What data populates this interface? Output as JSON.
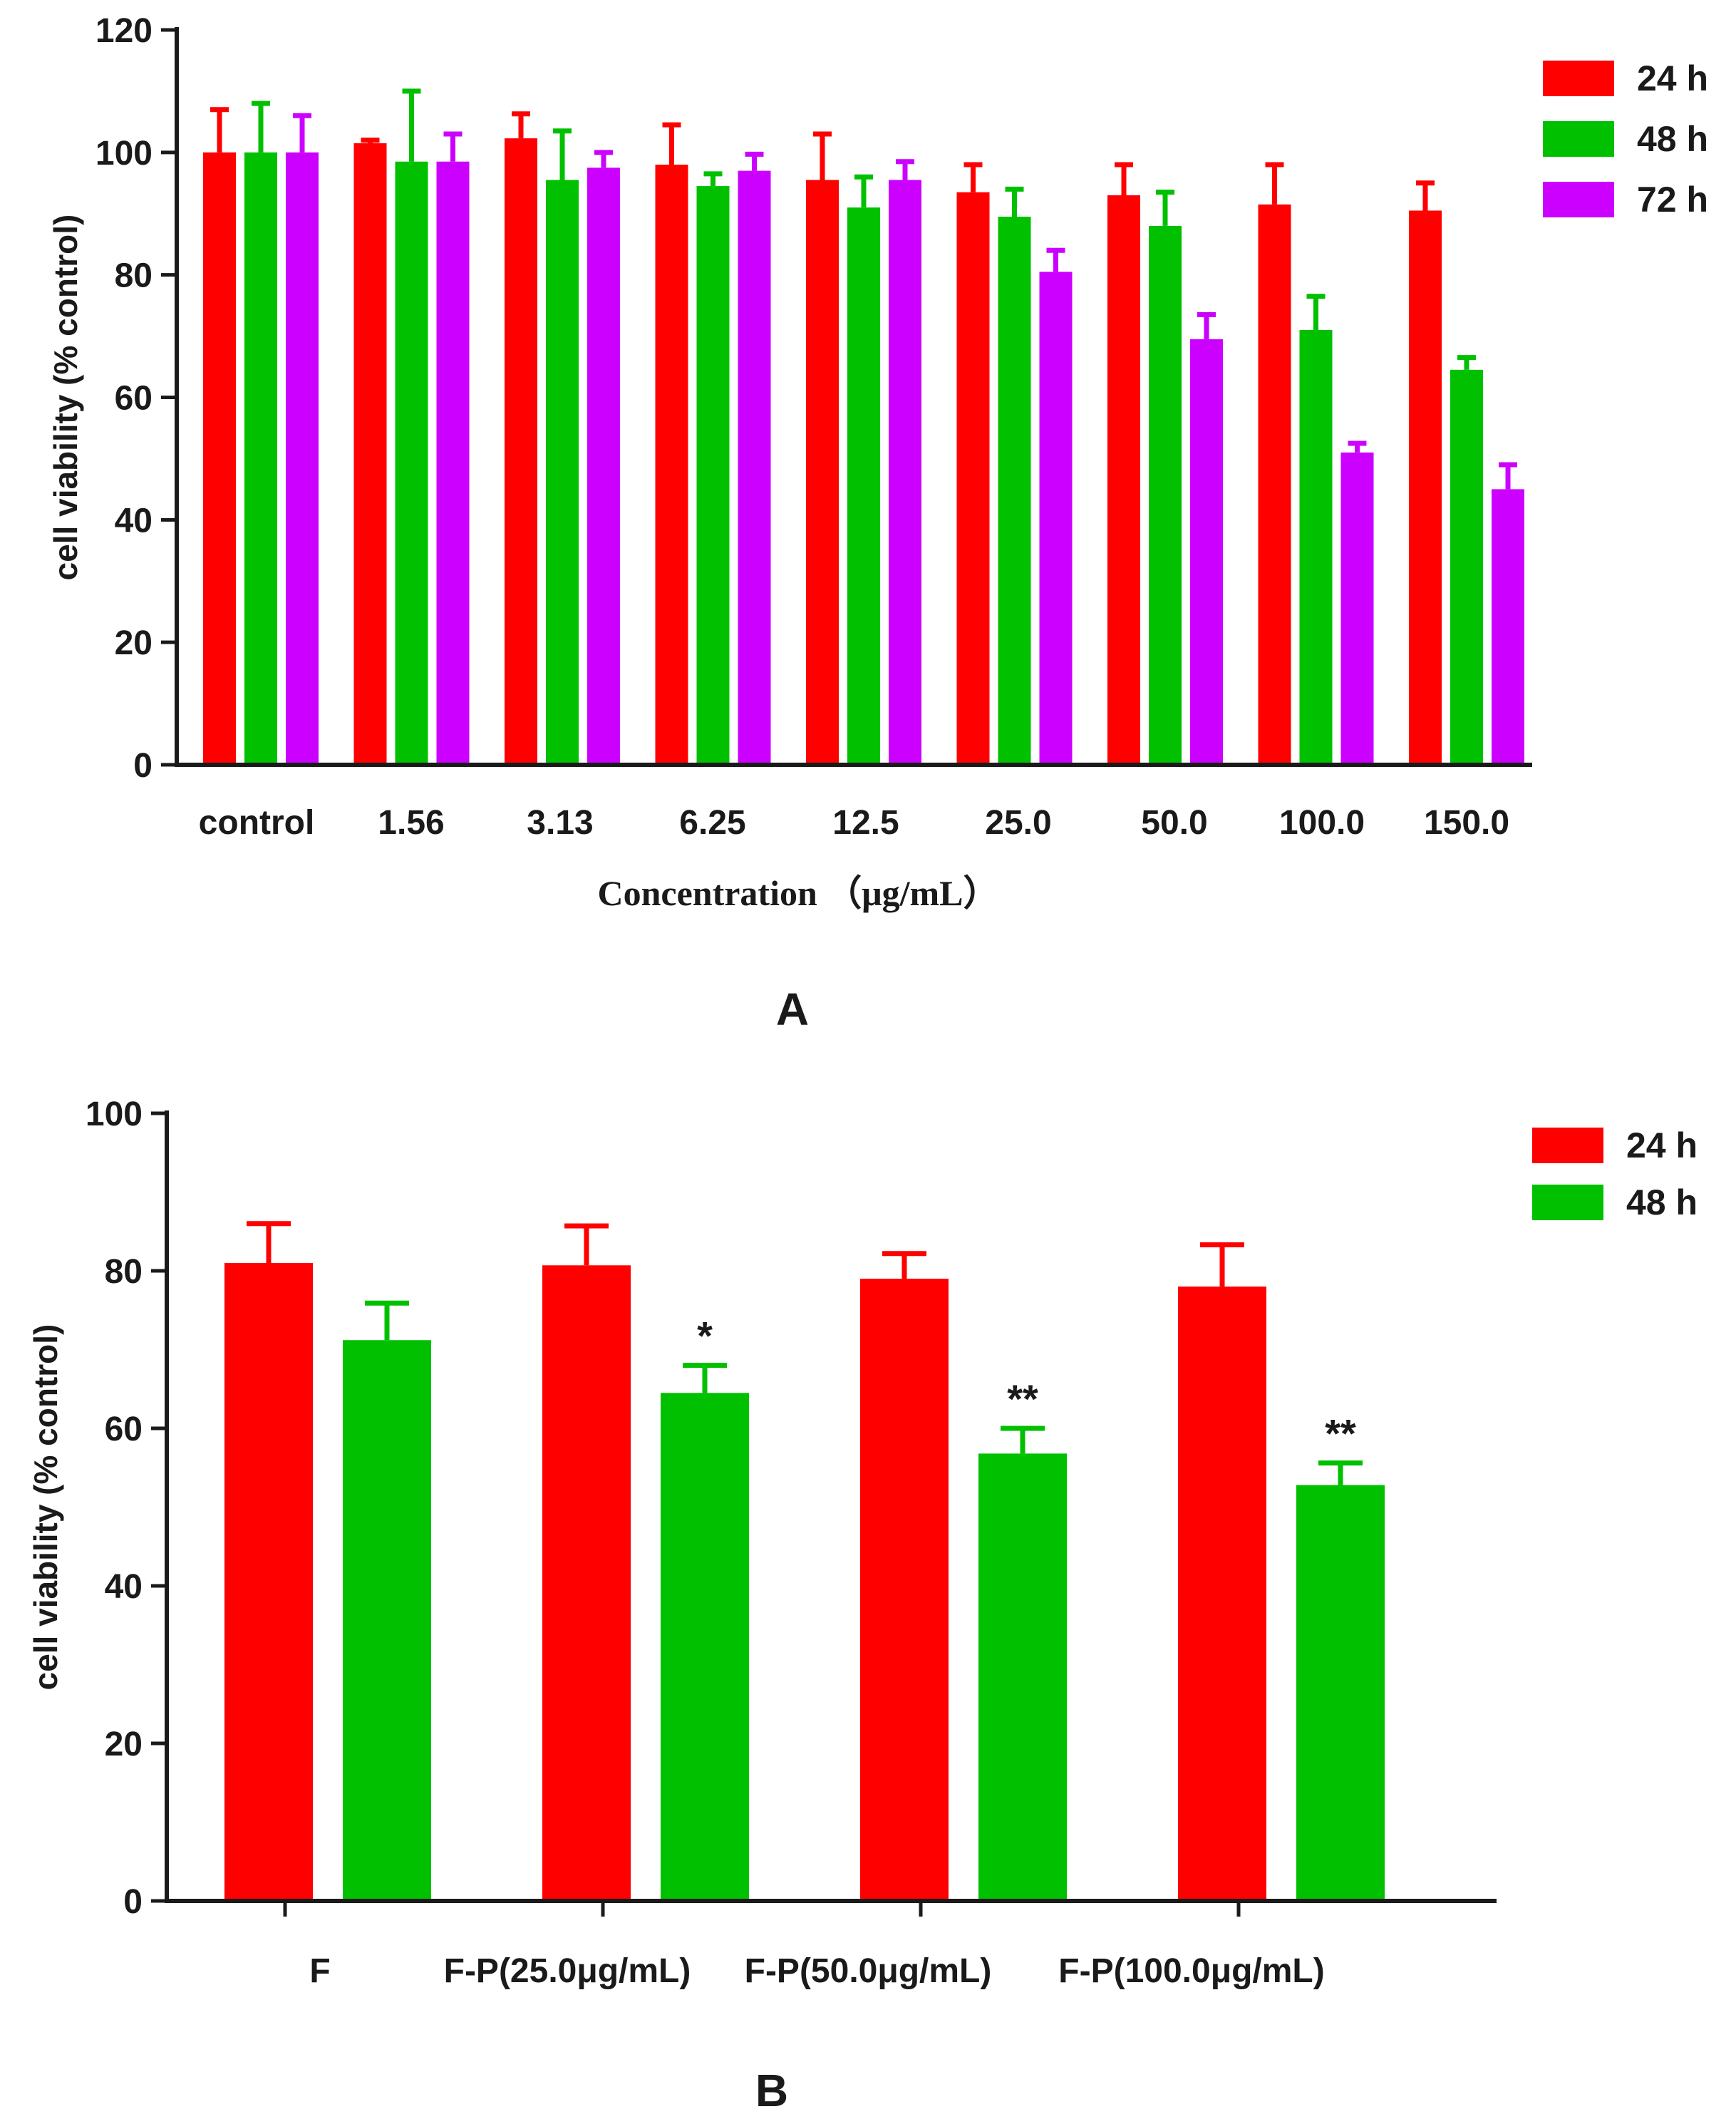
{
  "chart_data": [
    {
      "type": "bar",
      "panel_label": "A",
      "xlabel": "Concentration （μg/mL）",
      "ylabel": "cell viability (% control)",
      "ylim": [
        0,
        120
      ],
      "yticks": [
        "0",
        "20",
        "40",
        "60",
        "80",
        "100",
        "120"
      ],
      "categories": [
        "control",
        "1.56",
        "3.13",
        "6.25",
        "12.5",
        "25.0",
        "50.0",
        "100.0",
        "150.0"
      ],
      "series": [
        {
          "name": "24 h",
          "color": "#ff0000",
          "values": [
            100,
            101.5,
            102.3,
            98,
            95.5,
            93.5,
            93,
            91.5,
            90.5
          ],
          "errors": [
            7,
            0.5,
            4,
            6.5,
            7.5,
            4.5,
            5,
            6.5,
            4.5
          ]
        },
        {
          "name": "48 h",
          "color": "#00c000",
          "values": [
            100,
            98.5,
            95.5,
            94.5,
            91,
            89.5,
            88,
            71,
            64.5
          ],
          "errors": [
            8,
            11.5,
            8,
            2,
            5,
            4.5,
            5.5,
            5.5,
            2
          ]
        },
        {
          "name": "72 h",
          "color": "#cc00ff",
          "values": [
            100,
            98.5,
            97.5,
            97,
            95.5,
            80.5,
            69.5,
            51,
            45
          ],
          "errors": [
            6,
            4.5,
            2.5,
            2.7,
            3,
            3.5,
            4,
            1.5,
            4
          ]
        }
      ],
      "legend": "top-right"
    },
    {
      "type": "bar",
      "panel_label": "B",
      "xlabel": "",
      "ylabel": "cell viability (% control)",
      "ylim": [
        0,
        100
      ],
      "yticks": [
        "0",
        "20",
        "40",
        "60",
        "80",
        "100"
      ],
      "categories": [
        "F",
        "F-P(25.0μg/mL)",
        "F-P(50.0μg/mL)",
        "F-P(100.0μg/mL)"
      ],
      "series": [
        {
          "name": "24 h",
          "color": "#ff0000",
          "values": [
            81,
            80.7,
            79,
            78
          ],
          "errors": [
            5,
            5,
            3.2,
            5.3
          ]
        },
        {
          "name": "48 h",
          "color": "#00c000",
          "values": [
            71.2,
            64.5,
            56.8,
            52.8
          ],
          "errors": [
            4.7,
            3.5,
            3.2,
            2.8
          ]
        }
      ],
      "annotations": [
        "",
        "*",
        "**",
        "**"
      ],
      "legend": "top-right"
    }
  ]
}
